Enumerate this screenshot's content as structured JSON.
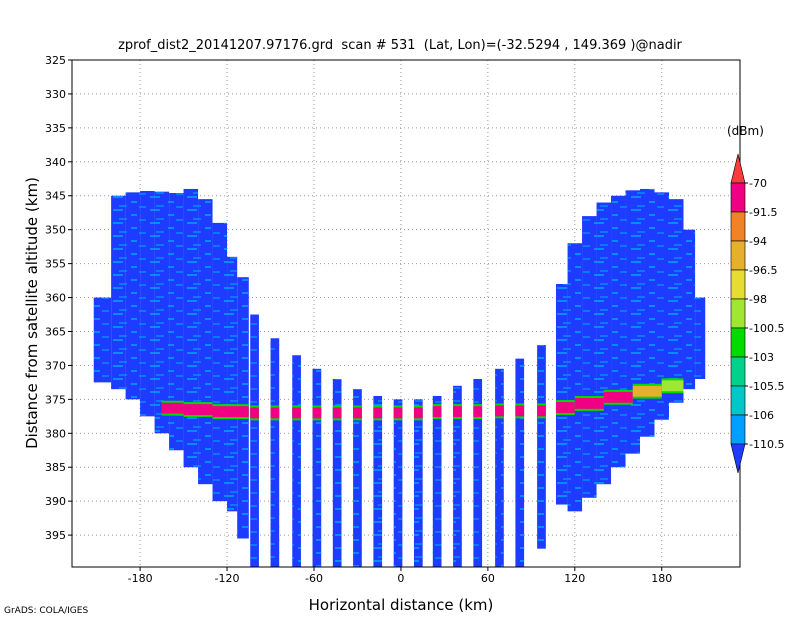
{
  "chart_data": {
    "type": "heatmap",
    "title": "zprof_dist2_20141207.97176.grd  scan # 531  (Lat, Lon)=(-32.5294 , 149.369 )@nadir",
    "x_label": "Horizontal distance (km)",
    "y_label": "Distance from satellite altitude (km)",
    "credit": "GrADS: COLA/IGES",
    "xlim": [
      -227,
      234
    ],
    "ylim": [
      325,
      399.7
    ],
    "y_reversed": true,
    "xticks": [
      -180,
      -120,
      -60,
      0,
      60,
      120,
      180
    ],
    "yticks": [
      325,
      330,
      335,
      340,
      345,
      350,
      355,
      360,
      365,
      370,
      375,
      380,
      385,
      390,
      395
    ],
    "grid": true,
    "colorbar": {
      "unit": "(dBm)",
      "levels": [
        -110.5,
        -106,
        -105.5,
        -103,
        -100.5,
        -98,
        -96.5,
        -94,
        -91.5,
        -70
      ],
      "colors": [
        "#1e3cff",
        "#00a0ff",
        "#00c8c8",
        "#00d28c",
        "#00dc00",
        "#a0e632",
        "#e6dc32",
        "#e6af2d",
        "#f08228",
        "#f00082",
        "#fa3c3c"
      ]
    },
    "columns": {
      "x0": [
        -212,
        -200,
        -190,
        -180,
        -170,
        -160,
        -150,
        -140,
        -130,
        -120,
        -113,
        -104,
        -90,
        -75,
        -61,
        -47,
        -33,
        -19,
        -5,
        9,
        22,
        36,
        50,
        65,
        79,
        94,
        107,
        115,
        125,
        135,
        145,
        155,
        165,
        175,
        185,
        195,
        203
      ],
      "x1": [
        -200,
        -190,
        -180,
        -170,
        -160,
        -150,
        -140,
        -130,
        -120,
        -113,
        -105,
        -98,
        -84,
        -69,
        -55,
        -41,
        -27,
        -13,
        1,
        15,
        28,
        42,
        56,
        71,
        85,
        100,
        115,
        125,
        135,
        145,
        155,
        165,
        175,
        185,
        195,
        203,
        210
      ],
      "top": [
        360,
        345,
        344.5,
        344.3,
        344.4,
        344.6,
        344,
        345.5,
        349,
        354,
        357,
        362.5,
        366,
        368.5,
        370.5,
        372,
        373.5,
        374.5,
        375,
        375,
        374.5,
        373,
        372,
        370.5,
        369,
        367,
        358,
        352,
        348,
        346,
        345,
        344.2,
        344,
        344.5,
        345.5,
        350,
        360
      ],
      "bottom": [
        372.5,
        373.5,
        375,
        377.5,
        380,
        382.5,
        385,
        387.5,
        390,
        391.5,
        395.5,
        399.7,
        399.7,
        399.7,
        399.7,
        399.7,
        399.7,
        399.7,
        399.7,
        399.7,
        399.7,
        399.7,
        399.7,
        399.7,
        399.7,
        397,
        390.5,
        391.5,
        389.5,
        387.5,
        385,
        383,
        380.5,
        378,
        375.5,
        373.5,
        372
      ],
      "values": [
        -112,
        -112,
        -112,
        -112,
        -112,
        -112,
        -112,
        -112,
        -112,
        -112,
        -112,
        -112,
        -112,
        -112,
        -112,
        -112,
        -112,
        -112,
        -112,
        -112,
        -112,
        -112,
        -112,
        -112,
        -112,
        -112,
        -112,
        -112,
        -112,
        -112,
        -112,
        -112,
        -112,
        -112,
        -112,
        -112,
        -112
      ]
    },
    "surface": {
      "x0": [
        -165,
        -150,
        -130,
        -105,
        -60,
        -20,
        20,
        60,
        105,
        120,
        140,
        160,
        180
      ],
      "x1": [
        -150,
        -130,
        -105,
        -60,
        -20,
        20,
        60,
        105,
        120,
        140,
        160,
        180,
        195
      ],
      "y": [
        376.3,
        376.5,
        376.8,
        377,
        377,
        377,
        376.8,
        376.7,
        376.2,
        375.6,
        374.7,
        373.8,
        373
      ],
      "values": [
        -85,
        -80,
        -82,
        -80,
        -82,
        -80,
        -82,
        -80,
        -80,
        -78,
        -85,
        -95,
        -100
      ]
    }
  }
}
